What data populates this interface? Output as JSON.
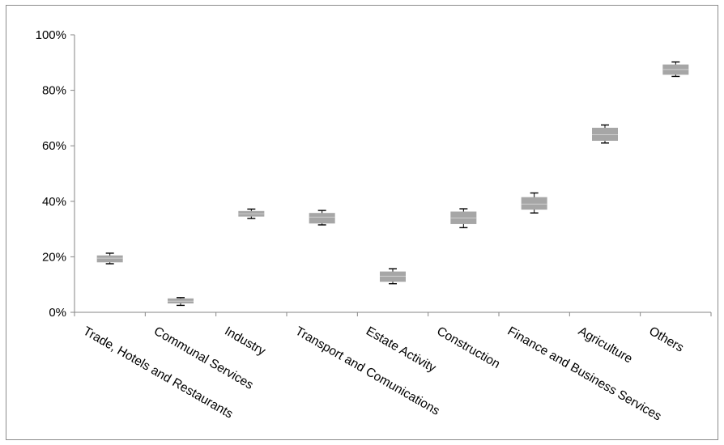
{
  "chart_data": {
    "type": "box",
    "title": "",
    "xlabel": "",
    "ylabel": "",
    "ylim": [
      0,
      100
    ],
    "yticks": [
      0,
      20,
      40,
      60,
      80,
      100
    ],
    "ytick_labels": [
      "0%",
      "20%",
      "40%",
      "60%",
      "80%",
      "100%"
    ],
    "grid": false,
    "legend": "none",
    "box_color": "#a6a6a6",
    "whisker_color": "#000000",
    "categories": [
      "Trade, Hotels and Restaurants",
      "Communal Services",
      "Industry",
      "Transport and Comunications",
      "Estate Activity",
      "Construction",
      "Finance and Business Services",
      "Agriculture",
      "Others"
    ],
    "series": [
      {
        "min": [
          17.5,
          2.5,
          33.8,
          31.5,
          10.3,
          30.5,
          35.8,
          61.0,
          85.0
        ],
        "q1": [
          18.0,
          3.2,
          34.5,
          32.0,
          11.0,
          31.8,
          37.0,
          61.8,
          85.6
        ],
        "median": [
          19.5,
          4.0,
          35.5,
          34.3,
          13.0,
          34.0,
          39.0,
          64.0,
          87.5
        ],
        "q3": [
          20.5,
          5.0,
          36.5,
          35.8,
          14.7,
          36.3,
          41.5,
          66.5,
          89.3
        ],
        "max": [
          21.3,
          5.3,
          37.2,
          36.7,
          15.7,
          37.3,
          43.0,
          67.5,
          90.2
        ]
      }
    ]
  }
}
